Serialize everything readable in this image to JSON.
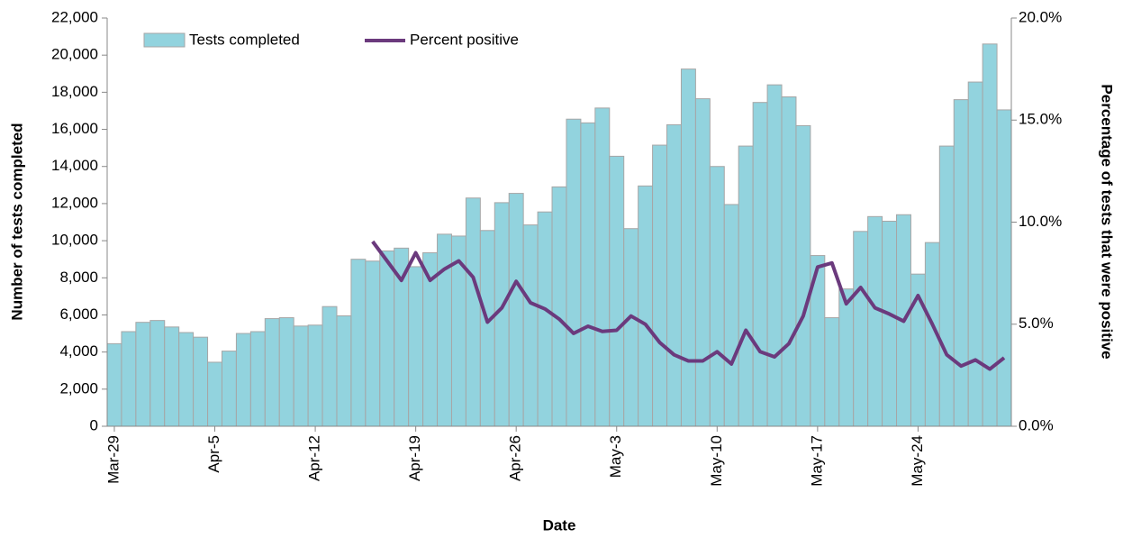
{
  "chart_data": {
    "type": "bar-line",
    "x_label": "Date",
    "y_label": "Number of tests completed",
    "y2_label": "Percentage of tests that were positive",
    "categories": [
      "Mar-29",
      null,
      null,
      null,
      null,
      null,
      null,
      "Apr-5",
      null,
      null,
      null,
      null,
      null,
      null,
      "Apr-12",
      null,
      null,
      null,
      null,
      null,
      null,
      "Apr-19",
      null,
      null,
      null,
      null,
      null,
      null,
      "Apr-26",
      null,
      null,
      null,
      null,
      null,
      null,
      "May-3",
      null,
      null,
      null,
      null,
      null,
      null,
      "May-10",
      null,
      null,
      null,
      null,
      null,
      null,
      "May-17",
      null,
      null,
      null,
      null,
      null,
      null,
      "May-24",
      null,
      null,
      null,
      null,
      null,
      null
    ],
    "series": [
      {
        "name": "Tests completed",
        "type": "bar",
        "color": "#92d3de",
        "values": [
          4450,
          5100,
          5600,
          5700,
          5350,
          5050,
          4800,
          3450,
          4050,
          5000,
          5100,
          5800,
          5850,
          5400,
          5450,
          6450,
          5950,
          9000,
          8900,
          9450,
          9600,
          8600,
          9350,
          10350,
          10250,
          12300,
          10550,
          12050,
          12550,
          10850,
          11550,
          12900,
          16550,
          16350,
          17150,
          14550,
          10650,
          12950,
          15150,
          16250,
          19250,
          17650,
          14000,
          11950,
          15100,
          17450,
          18400,
          17750,
          16200,
          9200,
          5850,
          7400,
          10500,
          11300,
          11050,
          11400,
          8200,
          9900,
          15100,
          17600,
          18550,
          20600,
          17050
        ]
      },
      {
        "name": "Percent positive",
        "type": "line",
        "axis": "y2",
        "color": "#6b3a7d",
        "values": [
          null,
          null,
          null,
          null,
          null,
          null,
          null,
          null,
          null,
          null,
          null,
          null,
          null,
          null,
          null,
          null,
          null,
          null,
          9.05,
          8.1,
          7.15,
          8.5,
          7.15,
          7.7,
          8.1,
          7.3,
          5.1,
          5.8,
          7.1,
          6.05,
          5.75,
          5.25,
          4.55,
          4.9,
          4.65,
          4.7,
          5.4,
          5.0,
          4.1,
          3.5,
          3.2,
          3.2,
          3.65,
          3.05,
          4.7,
          3.65,
          3.4,
          4.05,
          5.4,
          7.8,
          8.0,
          6.0,
          6.8,
          5.8,
          5.5,
          5.15,
          6.4,
          5.0,
          3.5,
          2.95,
          3.25,
          2.8,
          3.35
        ]
      }
    ],
    "ylim": [
      0,
      22000
    ],
    "yticks": [
      0,
      {
        "value": 2000,
        "label": "2,000"
      },
      {
        "value": 4000,
        "label": "4,000"
      },
      {
        "value": 6000,
        "label": "6,000"
      },
      {
        "value": 8000,
        "label": "8,000"
      },
      {
        "value": 10000,
        "label": "10,000"
      },
      {
        "value": 12000,
        "label": "12,000"
      },
      {
        "value": 14000,
        "label": "14,000"
      },
      {
        "value": 16000,
        "label": "16,000"
      },
      {
        "value": 18000,
        "label": "18,000"
      },
      {
        "value": 20000,
        "label": "20,000"
      },
      {
        "value": 22000,
        "label": "22,000"
      }
    ],
    "y2lim": [
      0,
      20
    ],
    "y2ticks": [
      {
        "value": 0,
        "label": "0.0%"
      },
      {
        "value": 5,
        "label": "5.0%"
      },
      {
        "value": 10,
        "label": "10.0%"
      },
      {
        "value": 15,
        "label": "15.0%"
      },
      {
        "value": 20,
        "label": "20.0%"
      }
    ],
    "legend": "top-left",
    "grid": false
  }
}
